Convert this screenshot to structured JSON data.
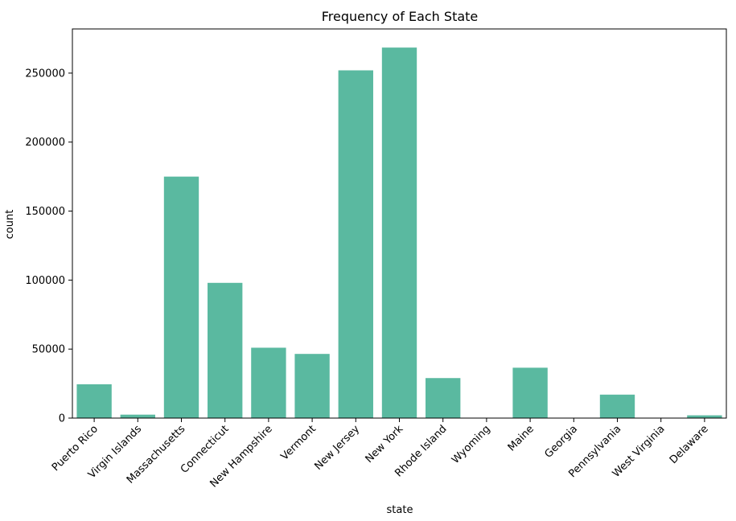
{
  "chart_data": {
    "type": "bar",
    "title": "Frequency of Each State",
    "xlabel": "state",
    "ylabel": "count",
    "categories": [
      "Puerto Rico",
      "Virgin Islands",
      "Massachusetts",
      "Connecticut",
      "New Hampshire",
      "Vermont",
      "New Jersey",
      "New York",
      "Rhode Island",
      "Wyoming",
      "Maine",
      "Georgia",
      "Pennsylvania",
      "West Virginia",
      "Delaware"
    ],
    "values": [
      24500,
      2500,
      175000,
      98000,
      51000,
      46500,
      252000,
      268500,
      29000,
      200,
      36500,
      200,
      17000,
      200,
      2000
    ],
    "y_ticks": [
      0,
      50000,
      100000,
      150000,
      200000,
      250000
    ],
    "y_tick_labels": [
      "0",
      "50000",
      "100000",
      "150000",
      "200000",
      "250000"
    ],
    "ylim": [
      0,
      282000
    ],
    "bar_color": "#5ab9a0",
    "grid": false,
    "legend": "none"
  }
}
